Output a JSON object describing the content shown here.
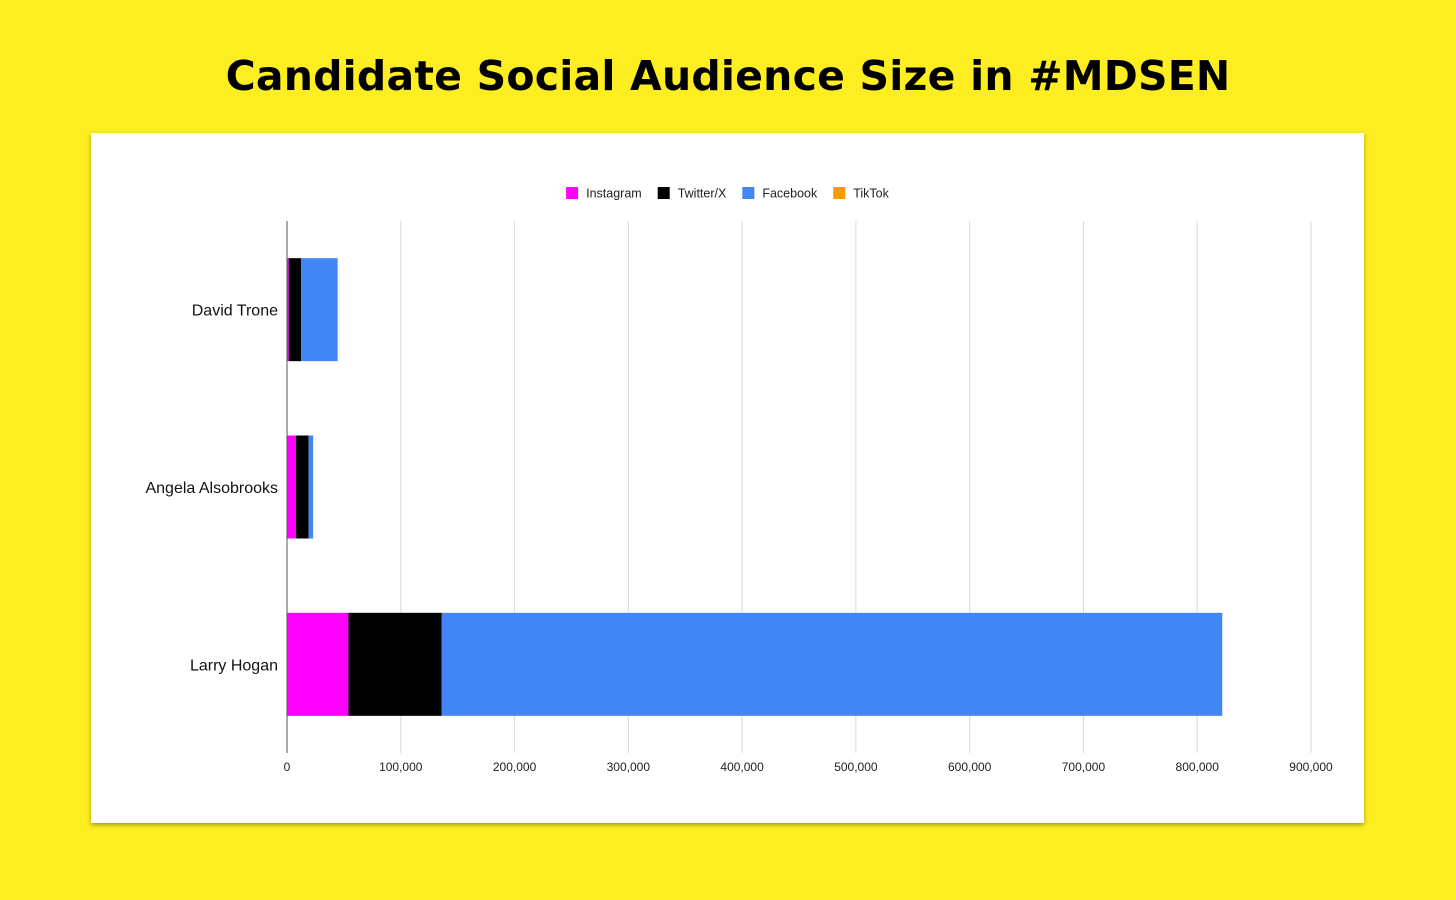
{
  "title": "Candidate Social Audience Size in #MDSEN",
  "chart_data": {
    "type": "bar",
    "orientation": "horizontal",
    "stacked": true,
    "categories": [
      "David Trone",
      "Angela Alsobrooks",
      "Larry Hogan"
    ],
    "series": [
      {
        "name": "Instagram",
        "color": "#ff00ff",
        "values": [
          1500,
          8000,
          54000
        ]
      },
      {
        "name": "Twitter/X",
        "color": "#000000",
        "values": [
          11000,
          11000,
          82000
        ]
      },
      {
        "name": "Facebook",
        "color": "#4285f4",
        "values": [
          32000,
          4000,
          686000
        ]
      },
      {
        "name": "TikTok",
        "color": "#ff9900",
        "values": [
          0,
          0,
          0
        ]
      }
    ],
    "xlim": [
      0,
      900000
    ],
    "xticks": [
      0,
      100000,
      200000,
      300000,
      400000,
      500000,
      600000,
      700000,
      800000,
      900000
    ],
    "xtick_labels": [
      "0",
      "100,000",
      "200,000",
      "300,000",
      "400,000",
      "500,000",
      "600,000",
      "700,000",
      "800,000",
      "900,000"
    ],
    "legend_position": "top",
    "grid": true
  }
}
